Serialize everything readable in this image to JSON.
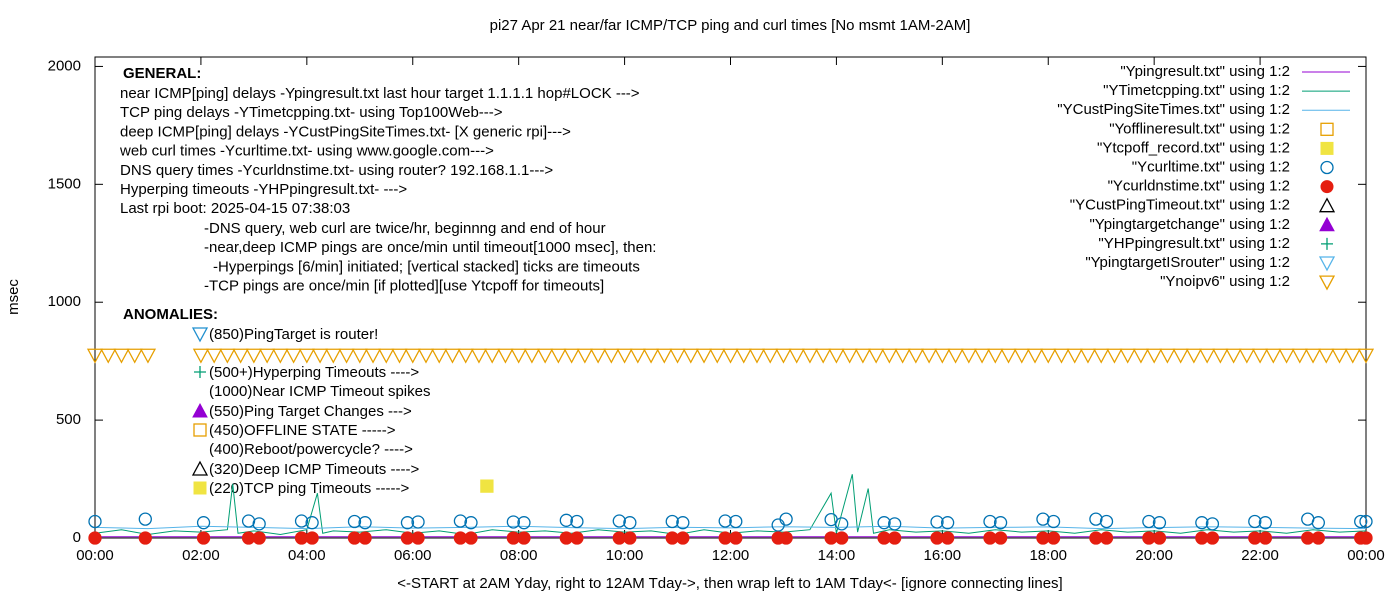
{
  "chart_data": {
    "type": "line",
    "title": "pi27 Apr 21  near/far ICMP/TCP ping and curl times [No msmt 1AM-2AM]",
    "xlabel": "<-START at 2AM Yday, right to 12AM Tday->, then wrap left to 1AM Tday<- [ignore connecting lines]",
    "ylabel": "msec",
    "xlim": [
      0,
      24
    ],
    "ylim": [
      0,
      2040
    ],
    "xticks": [
      {
        "value": 0,
        "label": "00:00"
      },
      {
        "value": 2,
        "label": "02:00"
      },
      {
        "value": 4,
        "label": "04:00"
      },
      {
        "value": 6,
        "label": "06:00"
      },
      {
        "value": 8,
        "label": "08:00"
      },
      {
        "value": 10,
        "label": "10:00"
      },
      {
        "value": 12,
        "label": "12:00"
      },
      {
        "value": 14,
        "label": "14:00"
      },
      {
        "value": 16,
        "label": "16:00"
      },
      {
        "value": 18,
        "label": "18:00"
      },
      {
        "value": 20,
        "label": "20:00"
      },
      {
        "value": 22,
        "label": "22:00"
      },
      {
        "value": 24,
        "label": "00:00"
      }
    ],
    "yticks": [
      0,
      500,
      1000,
      1500,
      2000
    ],
    "grid": false,
    "legend": "top right",
    "series": [
      {
        "name": "\"Ypingresult.txt\" using 1:2",
        "color": "#9400d3",
        "marker": "line",
        "x": [
          0,
          6,
          12,
          18,
          24
        ],
        "values": [
          5,
          5,
          5,
          5,
          5
        ]
      },
      {
        "name": "\"YTimetcpping.txt\" using 1:2",
        "color": "#009e73",
        "marker": "line",
        "x": [
          0,
          0.5,
          1,
          1.5,
          2,
          2.5,
          2.6,
          2.7,
          3,
          3.5,
          4,
          4.2,
          4.3,
          4.5,
          5,
          5.5,
          6,
          6.5,
          7,
          7.5,
          8,
          8.5,
          9,
          9.5,
          10,
          10.5,
          11,
          11.5,
          12,
          12.5,
          13,
          13.5,
          13.9,
          14,
          14.3,
          14.4,
          14.6,
          14.7,
          15,
          15.5,
          16,
          16.5,
          17,
          17.5,
          18,
          18.5,
          19,
          19.5,
          20,
          20.5,
          21,
          21.5,
          22,
          22.5,
          23,
          23.5,
          24
        ],
        "values": [
          20,
          35,
          15,
          30,
          25,
          35,
          230,
          20,
          30,
          15,
          35,
          190,
          20,
          30,
          25,
          35,
          20,
          30,
          15,
          35,
          25,
          30,
          20,
          35,
          25,
          30,
          15,
          35,
          20,
          30,
          25,
          35,
          190,
          20,
          270,
          25,
          210,
          20,
          35,
          25,
          30,
          20,
          35,
          25,
          30,
          20,
          35,
          25,
          30,
          20,
          35,
          25,
          30,
          20,
          35,
          25,
          30
        ]
      },
      {
        "name": "\"YCustPingSiteTimes.txt\" using 1:2",
        "color": "#56b4e9",
        "marker": "line",
        "x": [
          0,
          1,
          2,
          3,
          4,
          5,
          6,
          7,
          8,
          9,
          10,
          11,
          12,
          13,
          14,
          15,
          16,
          17,
          18,
          19,
          20,
          21,
          22,
          23,
          24
        ],
        "values": [
          45,
          40,
          50,
          45,
          40,
          48,
          42,
          45,
          50,
          44,
          40,
          46,
          43,
          48,
          45,
          50,
          42,
          45,
          47,
          40,
          44,
          48,
          45,
          42,
          40
        ]
      },
      {
        "name": "\"Yofflineresult.txt\" using 1:2",
        "color": "#e69f00",
        "marker": "square-open",
        "x": [],
        "values": []
      },
      {
        "name": "\"Ytcpoff_record.txt\" using 1:2",
        "color": "#f0e442",
        "marker": "square",
        "x": [
          7.4
        ],
        "values": [
          220
        ]
      },
      {
        "name": "\"Ycurltime.txt\" using 1:2",
        "color": "#0072b2",
        "marker": "circle-open",
        "x": [
          0,
          0.95,
          2.05,
          2.9,
          3.1,
          3.9,
          4.1,
          4.9,
          5.1,
          5.9,
          6.1,
          6.9,
          7.1,
          7.9,
          8.1,
          8.9,
          9.1,
          9.9,
          10.1,
          10.9,
          11.1,
          11.9,
          12.1,
          12.9,
          13.05,
          13.9,
          14.1,
          14.9,
          15.1,
          15.9,
          16.1,
          16.9,
          17.1,
          17.9,
          18.1,
          18.9,
          19.1,
          19.9,
          20.1,
          20.9,
          21.1,
          21.9,
          22.1,
          22.9,
          23.1,
          23.9,
          24
        ],
        "values": [
          70,
          80,
          65,
          72,
          60,
          72,
          65,
          70,
          65,
          65,
          68,
          72,
          65,
          68,
          65,
          75,
          70,
          72,
          65,
          70,
          65,
          72,
          70,
          55,
          80,
          78,
          60,
          65,
          60,
          68,
          65,
          70,
          65,
          80,
          70,
          80,
          70,
          70,
          65,
          65,
          60,
          70,
          65,
          80,
          65,
          70,
          70
        ]
      },
      {
        "name": "\"Ycurldnstime.txt\" using 1:2",
        "color": "#e51e10",
        "marker": "circle",
        "x": [
          0,
          0.95,
          2.05,
          2.9,
          3.1,
          3.9,
          4.1,
          4.9,
          5.1,
          5.9,
          6.1,
          6.9,
          7.1,
          7.9,
          8.1,
          8.9,
          9.1,
          9.9,
          10.1,
          10.9,
          11.1,
          11.9,
          12.1,
          12.9,
          13.05,
          13.9,
          14.1,
          14.9,
          15.1,
          15.9,
          16.1,
          16.9,
          17.1,
          17.9,
          18.1,
          18.9,
          19.1,
          19.9,
          20.1,
          20.9,
          21.1,
          21.9,
          22.1,
          22.9,
          23.1,
          23.9,
          24
        ],
        "values": [
          0,
          0,
          0,
          0,
          0,
          0,
          0,
          0,
          0,
          0,
          0,
          0,
          0,
          0,
          0,
          0,
          0,
          0,
          0,
          0,
          0,
          0,
          0,
          0,
          0,
          0,
          0,
          0,
          0,
          0,
          0,
          0,
          0,
          0,
          0,
          0,
          0,
          0,
          0,
          0,
          0,
          0,
          0,
          0,
          0,
          0,
          0
        ]
      },
      {
        "name": "\"YCustPingTimeout.txt\" using 1:2",
        "color": "#000000",
        "marker": "triangle-open",
        "x": [],
        "values": []
      },
      {
        "name": "\"Ypingtargetchange\" using 1:2",
        "color": "#9400d3",
        "marker": "triangle",
        "x": [],
        "values": []
      },
      {
        "name": "\"YHPpingresult.txt\" using 1:2",
        "color": "#009e73",
        "marker": "plus",
        "x": [],
        "values": []
      },
      {
        "name": "\"YpingtargetISrouter\" using 1:2",
        "color": "#56b4e9",
        "marker": "triangle-down-open",
        "x": [],
        "values": []
      },
      {
        "name": "\"Ynoipv6\" using 1:2",
        "color": "#e69f00",
        "marker": "triangle-down-open",
        "x": [
          0,
          0.25,
          0.5,
          0.75,
          1,
          2,
          2.25,
          2.5,
          2.75,
          3,
          3.25,
          3.5,
          3.75,
          4,
          4.25,
          4.5,
          4.75,
          5,
          5.25,
          5.5,
          5.75,
          6,
          6.25,
          6.5,
          6.75,
          7,
          7.25,
          7.5,
          7.75,
          8,
          8.25,
          8.5,
          8.75,
          9,
          9.25,
          9.5,
          9.75,
          10,
          10.25,
          10.5,
          10.75,
          11,
          11.25,
          11.5,
          11.75,
          12,
          12.25,
          12.5,
          12.75,
          13,
          13.25,
          13.5,
          13.75,
          14,
          14.25,
          14.5,
          14.75,
          15,
          15.25,
          15.5,
          15.75,
          16,
          16.25,
          16.5,
          16.75,
          17,
          17.25,
          17.5,
          17.75,
          18,
          18.25,
          18.5,
          18.75,
          19,
          19.25,
          19.5,
          19.75,
          20,
          20.25,
          20.5,
          20.75,
          21,
          21.25,
          21.5,
          21.75,
          22,
          22.25,
          22.5,
          22.75,
          23,
          23.25,
          23.5,
          23.75,
          24
        ],
        "values": [
          775,
          775,
          775,
          775,
          775,
          775,
          775,
          775,
          775,
          775,
          775,
          775,
          775,
          775,
          775,
          775,
          775,
          775,
          775,
          775,
          775,
          775,
          775,
          775,
          775,
          775,
          775,
          775,
          775,
          775,
          775,
          775,
          775,
          775,
          775,
          775,
          775,
          775,
          775,
          775,
          775,
          775,
          775,
          775,
          775,
          775,
          775,
          775,
          775,
          775,
          775,
          775,
          775,
          775,
          775,
          775,
          775,
          775,
          775,
          775,
          775,
          775,
          775,
          775,
          775,
          775,
          775,
          775,
          775,
          775,
          775,
          775,
          775,
          775,
          775,
          775,
          775,
          775,
          775,
          775,
          775,
          775,
          775,
          775,
          775,
          775,
          775,
          775,
          775,
          775,
          775,
          775,
          775,
          775
        ]
      }
    ],
    "general": {
      "heading": "GENERAL:",
      "lines": [
        "near ICMP[ping] delays -Ypingresult.txt last hour target 1.1.1.1 hop#LOCK --->",
        "TCP ping delays -YTimetcpping.txt- using Top100Web--->",
        "deep ICMP[ping] delays -YCustPingSiteTimes.txt- [X generic rpi]--->",
        "web curl times -Ycurltime.txt- using www.google.com--->",
        "DNS query times -Ycurldnstime.txt- using router? 192.168.1.1--->",
        "Hyperping timeouts -YHPpingresult.txt- --->",
        "Last rpi boot: 2025-04-15 07:38:03"
      ],
      "sublines": [
        "-DNS query, web curl are twice/hr, beginnng and end of hour",
        "-near,deep ICMP pings are once/min until timeout[1000 msec], then:",
        "-Hyperpings [6/min] initiated; [vertical stacked] ticks are timeouts",
        "-TCP pings are once/min [if plotted][use Ytcpoff for timeouts]"
      ]
    },
    "anomalies": {
      "heading": "ANOMALIES:",
      "items": [
        {
          "text": "(850)PingTarget is router!",
          "marker": "triangle-down-open",
          "color": "#1f8fcf"
        },
        {
          "text": "(500+)Hyperping Timeouts ---->",
          "marker": "plus",
          "color": "#009e73"
        },
        {
          "text": "(1000)Near ICMP Timeout spikes"
        },
        {
          "text": "(550)Ping Target Changes --->",
          "marker": "triangle",
          "color": "#9400d3"
        },
        {
          "text": "(450)OFFLINE STATE ----->",
          "marker": "square-open",
          "color": "#e69f00"
        },
        {
          "text": "(400)Reboot/powercycle? ---->"
        },
        {
          "text": "(320)Deep ICMP Timeouts ---->",
          "marker": "triangle-open",
          "color": "#000000"
        },
        {
          "text": "(220)TCP ping Timeouts ----->",
          "marker": "square",
          "color": "#f0e442"
        }
      ]
    }
  }
}
